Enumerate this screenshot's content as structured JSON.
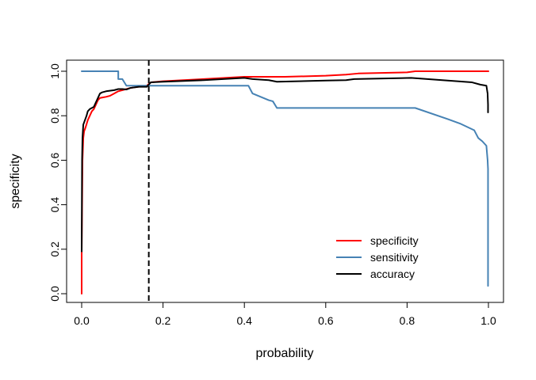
{
  "chart_data": {
    "type": "line",
    "title": "",
    "xlabel": "probability",
    "ylabel": "specificity",
    "xlim": [
      0,
      1
    ],
    "ylim": [
      0,
      1
    ],
    "x_ticks": [
      0.0,
      0.2,
      0.4,
      0.6,
      0.8,
      1.0
    ],
    "x_tick_labels": [
      "0.0",
      "0.2",
      "0.4",
      "0.6",
      "0.8",
      "1.0"
    ],
    "y_ticks": [
      0.0,
      0.2,
      0.4,
      0.6,
      0.8,
      1.0
    ],
    "y_tick_labels": [
      "0.0",
      "0.2",
      "0.4",
      "0.6",
      "0.8",
      "1.0"
    ],
    "grid": false,
    "legend_position": "bottom-right",
    "cutoff_line": {
      "x": 0.165,
      "style": "dashed",
      "color": "#000000"
    },
    "series": [
      {
        "name": "specificity",
        "color": "#ff0000",
        "points": [
          [
            0.0,
            0.0
          ],
          [
            0.0,
            0.18
          ],
          [
            0.002,
            0.6
          ],
          [
            0.004,
            0.7
          ],
          [
            0.006,
            0.73
          ],
          [
            0.01,
            0.75
          ],
          [
            0.015,
            0.78
          ],
          [
            0.02,
            0.8
          ],
          [
            0.025,
            0.82
          ],
          [
            0.03,
            0.83
          ],
          [
            0.035,
            0.85
          ],
          [
            0.04,
            0.87
          ],
          [
            0.045,
            0.88
          ],
          [
            0.06,
            0.885
          ],
          [
            0.07,
            0.89
          ],
          [
            0.08,
            0.9
          ],
          [
            0.09,
            0.91
          ],
          [
            0.1,
            0.915
          ],
          [
            0.11,
            0.92
          ],
          [
            0.12,
            0.925
          ],
          [
            0.14,
            0.93
          ],
          [
            0.16,
            0.935
          ],
          [
            0.17,
            0.95
          ],
          [
            0.2,
            0.955
          ],
          [
            0.3,
            0.965
          ],
          [
            0.4,
            0.975
          ],
          [
            0.5,
            0.975
          ],
          [
            0.6,
            0.98
          ],
          [
            0.65,
            0.985
          ],
          [
            0.68,
            0.99
          ],
          [
            0.8,
            0.995
          ],
          [
            0.82,
            1.0
          ],
          [
            1.0,
            1.0
          ]
        ]
      },
      {
        "name": "sensitivity",
        "color": "#4682b4",
        "points": [
          [
            0.0,
            1.0
          ],
          [
            0.09,
            1.0
          ],
          [
            0.09,
            0.965
          ],
          [
            0.1,
            0.965
          ],
          [
            0.11,
            0.935
          ],
          [
            0.16,
            0.935
          ],
          [
            0.165,
            0.935
          ],
          [
            0.4,
            0.935
          ],
          [
            0.41,
            0.935
          ],
          [
            0.42,
            0.9
          ],
          [
            0.46,
            0.87
          ],
          [
            0.47,
            0.865
          ],
          [
            0.48,
            0.835
          ],
          [
            0.81,
            0.835
          ],
          [
            0.82,
            0.835
          ],
          [
            0.9,
            0.785
          ],
          [
            0.93,
            0.765
          ],
          [
            0.965,
            0.735
          ],
          [
            0.975,
            0.7
          ],
          [
            0.985,
            0.685
          ],
          [
            0.995,
            0.665
          ],
          [
            0.998,
            0.6
          ],
          [
            0.999,
            0.56
          ],
          [
            0.999,
            0.035
          ]
        ]
      },
      {
        "name": "accuracy",
        "color": "#000000",
        "points": [
          [
            0.0,
            0.19
          ],
          [
            0.001,
            0.6
          ],
          [
            0.002,
            0.7
          ],
          [
            0.004,
            0.76
          ],
          [
            0.008,
            0.78
          ],
          [
            0.012,
            0.8
          ],
          [
            0.015,
            0.82
          ],
          [
            0.02,
            0.83
          ],
          [
            0.03,
            0.84
          ],
          [
            0.035,
            0.86
          ],
          [
            0.04,
            0.88
          ],
          [
            0.045,
            0.9
          ],
          [
            0.05,
            0.905
          ],
          [
            0.06,
            0.91
          ],
          [
            0.08,
            0.915
          ],
          [
            0.09,
            0.92
          ],
          [
            0.1,
            0.92
          ],
          [
            0.11,
            0.918
          ],
          [
            0.12,
            0.925
          ],
          [
            0.14,
            0.93
          ],
          [
            0.16,
            0.93
          ],
          [
            0.17,
            0.95
          ],
          [
            0.2,
            0.953
          ],
          [
            0.3,
            0.96
          ],
          [
            0.4,
            0.97
          ],
          [
            0.42,
            0.965
          ],
          [
            0.46,
            0.96
          ],
          [
            0.48,
            0.953
          ],
          [
            0.6,
            0.958
          ],
          [
            0.65,
            0.96
          ],
          [
            0.67,
            0.965
          ],
          [
            0.81,
            0.97
          ],
          [
            0.85,
            0.965
          ],
          [
            0.96,
            0.95
          ],
          [
            0.98,
            0.94
          ],
          [
            0.995,
            0.935
          ],
          [
            0.998,
            0.9
          ],
          [
            0.999,
            0.85
          ],
          [
            0.999,
            0.815
          ]
        ]
      }
    ]
  }
}
